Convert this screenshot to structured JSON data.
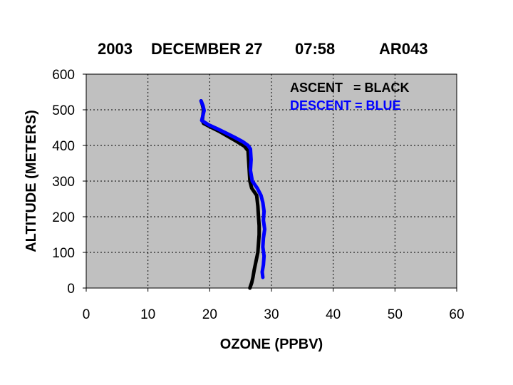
{
  "chart_data": {
    "type": "line",
    "title": {
      "year": "2003",
      "date": "DECEMBER 27",
      "time": "07:58",
      "flight": "AR043"
    },
    "xlabel": "OZONE (PPBV)",
    "ylabel": "ALTITUDE (METERS)",
    "xlim": [
      0,
      60
    ],
    "ylim": [
      0,
      600
    ],
    "x_ticks": [
      "0",
      "10",
      "20",
      "30",
      "40",
      "50",
      "60"
    ],
    "y_ticks": [
      "0",
      "100",
      "200",
      "300",
      "400",
      "500",
      "600"
    ],
    "grid": true,
    "plot_background": "#c0c0c0",
    "legend_lines": [
      {
        "text": "ASCENT   = BLACK",
        "color": "#000000"
      },
      {
        "text": "DESCENT = BLUE",
        "color": "#0000ff"
      }
    ],
    "legend_position": "top-right",
    "series": [
      {
        "color": "#000000",
        "points": [
          {
            "x": 26.5,
            "y": 0
          },
          {
            "x": 26.8,
            "y": 15
          },
          {
            "x": 27.0,
            "y": 30
          },
          {
            "x": 27.2,
            "y": 50
          },
          {
            "x": 27.5,
            "y": 75
          },
          {
            "x": 27.8,
            "y": 100
          },
          {
            "x": 27.9,
            "y": 125
          },
          {
            "x": 28.0,
            "y": 150
          },
          {
            "x": 28.0,
            "y": 175
          },
          {
            "x": 27.9,
            "y": 200
          },
          {
            "x": 27.8,
            "y": 230
          },
          {
            "x": 27.6,
            "y": 260
          },
          {
            "x": 26.8,
            "y": 280
          },
          {
            "x": 26.5,
            "y": 300
          },
          {
            "x": 26.4,
            "y": 330
          },
          {
            "x": 26.3,
            "y": 360
          },
          {
            "x": 26.2,
            "y": 385
          },
          {
            "x": 25.6,
            "y": 398
          },
          {
            "x": 24.5,
            "y": 410
          },
          {
            "x": 23.0,
            "y": 425
          },
          {
            "x": 21.5,
            "y": 440
          },
          {
            "x": 20.0,
            "y": 453
          },
          {
            "x": 19.0,
            "y": 462
          },
          {
            "x": 18.8,
            "y": 470
          },
          {
            "x": 18.9,
            "y": 485
          },
          {
            "x": 19.0,
            "y": 500
          },
          {
            "x": 18.8,
            "y": 515
          },
          {
            "x": 18.6,
            "y": 525
          }
        ]
      },
      {
        "color": "#0000ff",
        "points": [
          {
            "x": 18.6,
            "y": 525
          },
          {
            "x": 18.9,
            "y": 512
          },
          {
            "x": 19.1,
            "y": 498
          },
          {
            "x": 18.9,
            "y": 484
          },
          {
            "x": 18.7,
            "y": 470
          },
          {
            "x": 19.8,
            "y": 458
          },
          {
            "x": 21.2,
            "y": 447
          },
          {
            "x": 22.5,
            "y": 436
          },
          {
            "x": 24.0,
            "y": 423
          },
          {
            "x": 25.4,
            "y": 410
          },
          {
            "x": 26.2,
            "y": 400
          },
          {
            "x": 26.6,
            "y": 390
          },
          {
            "x": 26.7,
            "y": 360
          },
          {
            "x": 26.6,
            "y": 330
          },
          {
            "x": 26.9,
            "y": 300
          },
          {
            "x": 27.7,
            "y": 280
          },
          {
            "x": 28.3,
            "y": 260
          },
          {
            "x": 28.6,
            "y": 240
          },
          {
            "x": 28.8,
            "y": 215
          },
          {
            "x": 28.7,
            "y": 190
          },
          {
            "x": 28.9,
            "y": 165
          },
          {
            "x": 28.7,
            "y": 140
          },
          {
            "x": 28.6,
            "y": 115
          },
          {
            "x": 28.8,
            "y": 90
          },
          {
            "x": 28.7,
            "y": 65
          },
          {
            "x": 28.5,
            "y": 45
          },
          {
            "x": 28.6,
            "y": 30
          }
        ]
      }
    ]
  }
}
